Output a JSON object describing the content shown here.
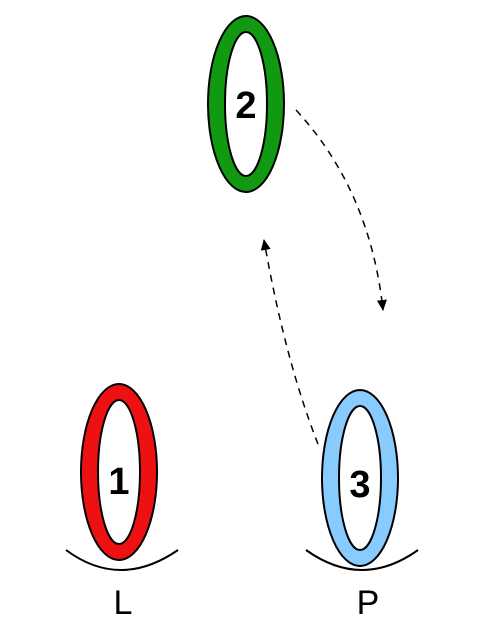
{
  "rings": [
    {
      "id": "ring-1",
      "label": "1",
      "color": "#ee1111"
    },
    {
      "id": "ring-2",
      "label": "2",
      "color": "#119911"
    },
    {
      "id": "ring-3",
      "label": "3",
      "color": "#88ccff"
    }
  ],
  "bases": [
    {
      "id": "base-l",
      "label": "L"
    },
    {
      "id": "base-p",
      "label": "P"
    }
  ],
  "arrows": [
    {
      "id": "arrow-2-to-3",
      "from": "2",
      "to": "3",
      "style": "dashed"
    },
    {
      "id": "arrow-3-to-2",
      "from": "3",
      "to": "2",
      "style": "dashed"
    }
  ],
  "colors": {
    "outline": "#000000",
    "background": "#ffffff"
  }
}
